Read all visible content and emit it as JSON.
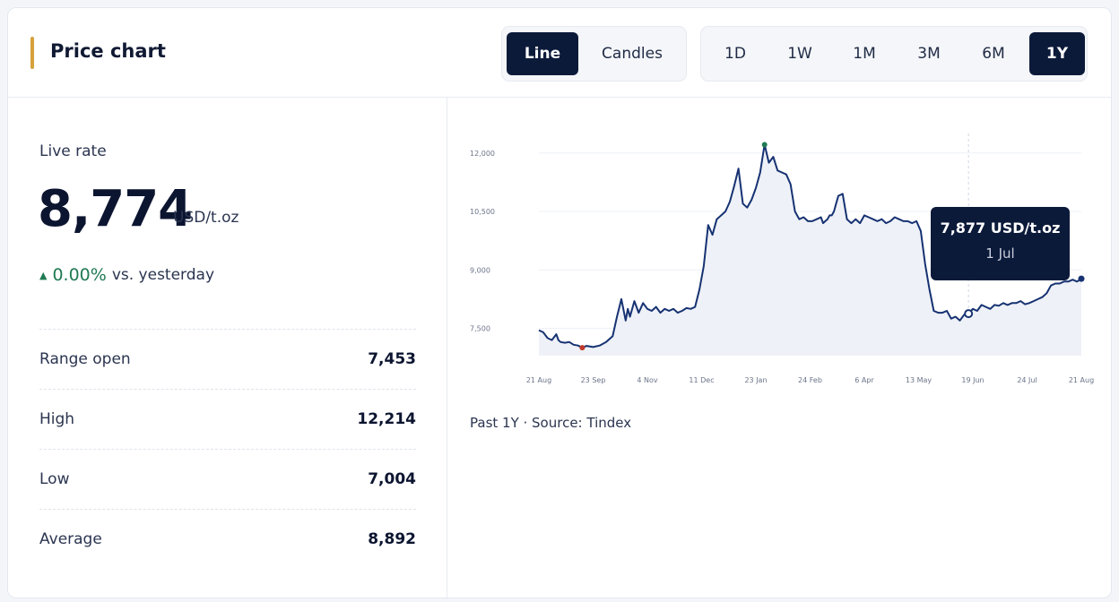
{
  "header": {
    "title": "Price chart",
    "chart_types": [
      {
        "label": "Line",
        "active": true
      },
      {
        "label": "Candles",
        "active": false
      }
    ],
    "ranges": [
      {
        "label": "1D",
        "active": false
      },
      {
        "label": "1W",
        "active": false
      },
      {
        "label": "1M",
        "active": false
      },
      {
        "label": "3M",
        "active": false
      },
      {
        "label": "6M",
        "active": false
      },
      {
        "label": "1Y",
        "active": true
      }
    ]
  },
  "summary": {
    "live_label": "Live rate",
    "live_value": "8,774",
    "unit": "USD/t.oz",
    "change_pct": "0.00%",
    "change_suffix": "vs. yesterday",
    "stats": [
      {
        "label": "Range open",
        "value": "7,453"
      },
      {
        "label": "High",
        "value": "12,214"
      },
      {
        "label": "Low",
        "value": "7,004"
      },
      {
        "label": "Average",
        "value": "8,892"
      }
    ]
  },
  "tooltip": {
    "value": "7,877 USD/t.oz",
    "date": "1 Jul"
  },
  "footer": {
    "source": "Past 1Y · Source: Tindex"
  },
  "colors": {
    "line": "#163272",
    "fill": "#eef1f7",
    "accent": "#d6a23c",
    "up": "#1f7a52",
    "low_dot": "#c0392b",
    "high_dot": "#1f7a52"
  },
  "chart_data": {
    "type": "area",
    "ylim": [
      6800,
      12500
    ],
    "y_ticks": [
      12000,
      10500,
      9000,
      7500
    ],
    "y_tick_labels": [
      "12,000",
      "10,500",
      "9,000",
      "7,500"
    ],
    "x_tick_labels": [
      "21 Aug",
      "23 Sep",
      "4 Nov",
      "11 Dec",
      "23 Jan",
      "24 Feb",
      "6 Apr",
      "13 May",
      "19 Jun",
      "24 Jul",
      "21 Aug"
    ],
    "x": [
      0,
      2,
      4,
      6,
      8,
      9,
      10,
      12,
      14,
      16,
      18,
      20,
      22,
      25,
      28,
      31,
      34,
      36,
      38,
      40,
      41,
      42,
      44,
      46,
      48,
      50,
      52,
      54,
      56,
      58,
      60,
      62,
      64,
      66,
      68,
      70,
      72,
      74,
      76,
      78,
      80,
      82,
      84,
      86,
      88,
      90,
      92,
      94,
      96,
      98,
      100,
      102,
      104,
      106,
      108,
      110,
      112,
      114,
      116,
      118,
      120,
      122,
      124,
      126,
      128,
      130,
      131,
      132,
      133,
      134,
      135,
      136,
      137,
      138,
      140,
      142,
      144,
      146,
      148,
      150,
      152,
      154,
      156,
      158,
      160,
      162,
      164,
      166,
      168,
      170,
      172,
      174,
      176,
      178,
      180,
      182,
      184,
      186,
      188,
      190,
      192,
      194,
      196,
      198,
      200,
      202,
      204,
      206,
      208,
      210,
      212,
      214,
      216,
      218,
      220,
      222,
      224,
      226,
      228,
      230,
      232,
      234,
      236,
      238,
      240,
      242,
      244,
      246,
      248,
      250
    ],
    "y": [
      7453,
      7400,
      7250,
      7200,
      7350,
      7200,
      7150,
      7130,
      7150,
      7080,
      7060,
      7004,
      7050,
      7020,
      7060,
      7150,
      7300,
      7800,
      8250,
      7700,
      8000,
      7800,
      8200,
      7900,
      8150,
      8000,
      7950,
      8050,
      7900,
      8000,
      7950,
      8000,
      7900,
      7950,
      8020,
      8000,
      8050,
      8500,
      9100,
      10150,
      9900,
      10300,
      10400,
      10500,
      10750,
      11150,
      11600,
      10700,
      10600,
      10800,
      11100,
      11500,
      12214,
      11750,
      11900,
      11550,
      11500,
      11450,
      11200,
      10500,
      10300,
      10350,
      10250,
      10250,
      10300,
      10350,
      10200,
      10250,
      10300,
      10400,
      10400,
      10500,
      10700,
      10900,
      10950,
      10300,
      10200,
      10300,
      10200,
      10400,
      10350,
      10300,
      10250,
      10300,
      10200,
      10250,
      10350,
      10300,
      10250,
      10250,
      10200,
      10250,
      10000,
      9150,
      8500,
      7950,
      7900,
      7900,
      7950,
      7750,
      7800,
      7700,
      7850,
      7877,
      8000,
      7950,
      8100,
      8050,
      8000,
      8100,
      8080,
      8150,
      8100,
      8150,
      8150,
      8200,
      8120,
      8150,
      8200,
      8250,
      8300,
      8400,
      8600,
      8650,
      8650,
      8700,
      8700,
      8750,
      8700,
      8774
    ]
  }
}
